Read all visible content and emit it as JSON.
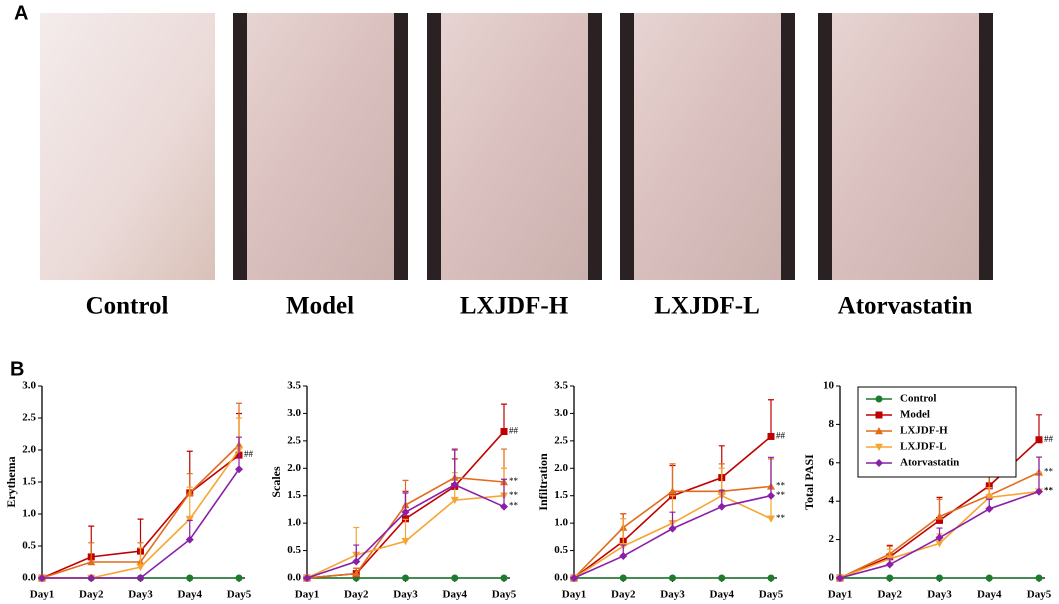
{
  "panels": {
    "a": "A",
    "b": "B"
  },
  "photos": [
    "Control",
    "Model",
    "LXJDF-H",
    "LXJDF-L",
    "Atorvastatin"
  ],
  "chart_data": [
    {
      "type": "line",
      "ylabel": "Erythema",
      "categories": [
        "Day1",
        "Day2",
        "Day3",
        "Day4",
        "Day5"
      ],
      "ylim": [
        0,
        3
      ],
      "yticks": [
        {
          "value": 0,
          "label": "0.0"
        },
        0.5,
        {
          "value": 1,
          "label": "1.0"
        },
        1.5,
        {
          "value": 2,
          "label": "2.0"
        },
        2.5,
        {
          "value": 3,
          "label": "3.0"
        }
      ],
      "series": [
        {
          "name": "Control",
          "color": "#1e7b2e",
          "marker": "circle",
          "values": [
            0,
            0,
            0,
            0,
            0
          ]
        },
        {
          "name": "Model",
          "color": "#c00000",
          "marker": "square",
          "values": [
            0,
            0.33,
            0.42,
            1.33,
            1.92
          ],
          "errors": [
            0,
            0.48,
            0.5,
            0.65,
            0.65
          ],
          "annotation": "##"
        },
        {
          "name": "LXJDF-H",
          "color": "#e06c1c",
          "marker": "triangle",
          "values": [
            0,
            0.25,
            0.25,
            1.33,
            2.08
          ],
          "errors": [
            0,
            0.3,
            0.3,
            0.3,
            0.65
          ]
        },
        {
          "name": "LXJDF-L",
          "color": "#f7a530",
          "marker": "triangle-down",
          "values": [
            0,
            0,
            0.17,
            0.92,
            2.0
          ],
          "errors": [
            0,
            0,
            0.3,
            0.5,
            0.5
          ]
        },
        {
          "name": "Atorvastatin",
          "color": "#8a1fa8",
          "marker": "diamond",
          "values": [
            0,
            0,
            0,
            0.6,
            1.7
          ],
          "errors": [
            0,
            0,
            0,
            0.3,
            0.5
          ]
        }
      ]
    },
    {
      "type": "line",
      "ylabel": "Scales",
      "categories": [
        "Day1",
        "Day2",
        "Day3",
        "Day4",
        "Day5"
      ],
      "ylim": [
        0,
        3.5
      ],
      "yticks": [
        {
          "value": 0,
          "label": "0.0"
        },
        0.5,
        {
          "value": 1,
          "label": "1.0"
        },
        1.5,
        {
          "value": 2,
          "label": "2.0"
        },
        2.5,
        {
          "value": 3,
          "label": "3.0"
        },
        3.5
      ],
      "series": [
        {
          "name": "Control",
          "color": "#1e7b2e",
          "marker": "circle",
          "values": [
            0,
            0,
            0,
            0,
            0
          ]
        },
        {
          "name": "Model",
          "color": "#c00000",
          "marker": "square",
          "values": [
            0,
            0.08,
            1.08,
            1.67,
            2.67
          ],
          "errors": [
            0,
            0.1,
            0.5,
            0.5,
            0.5
          ],
          "annotation": "##"
        },
        {
          "name": "LXJDF-H",
          "color": "#e06c1c",
          "marker": "triangle",
          "values": [
            0,
            0.08,
            1.33,
            1.83,
            1.75
          ],
          "errors": [
            0,
            0.1,
            0.45,
            0.5,
            0.6
          ],
          "annotation": "**"
        },
        {
          "name": "LXJDF-L",
          "color": "#f7a530",
          "marker": "triangle-down",
          "values": [
            0,
            0.42,
            0.67,
            1.42,
            1.5
          ],
          "errors": [
            0,
            0.5,
            0.4,
            0.5,
            0.5
          ],
          "annotation": "**"
        },
        {
          "name": "Atorvastatin",
          "color": "#8a1fa8",
          "marker": "diamond",
          "values": [
            0,
            0.3,
            1.2,
            1.7,
            1.3
          ],
          "errors": [
            0,
            0.3,
            0.35,
            0.65,
            0.5
          ],
          "annotation": "**"
        }
      ]
    },
    {
      "type": "line",
      "ylabel": "Infiltration",
      "categories": [
        "Day1",
        "Day2",
        "Day3",
        "Day4",
        "Day5"
      ],
      "ylim": [
        0,
        3.5
      ],
      "yticks": [
        {
          "value": 0,
          "label": "0.0"
        },
        0.5,
        {
          "value": 1,
          "label": "1.0"
        },
        1.5,
        {
          "value": 2,
          "label": "2.0"
        },
        2.5,
        {
          "value": 3,
          "label": "3.0"
        },
        3.5
      ],
      "series": [
        {
          "name": "Control",
          "color": "#1e7b2e",
          "marker": "circle",
          "values": [
            0,
            0,
            0,
            0,
            0
          ]
        },
        {
          "name": "Model",
          "color": "#c00000",
          "marker": "square",
          "values": [
            0,
            0.67,
            1.5,
            1.83,
            2.58
          ],
          "errors": [
            0,
            0.5,
            0.55,
            0.58,
            0.67
          ],
          "annotation": "##"
        },
        {
          "name": "LXJDF-H",
          "color": "#e06c1c",
          "marker": "triangle",
          "values": [
            0,
            0.92,
            1.58,
            1.58,
            1.67
          ],
          "errors": [
            0,
            0.25,
            0.5,
            0.5,
            0.5
          ],
          "annotation": "**"
        },
        {
          "name": "LXJDF-L",
          "color": "#f7a530",
          "marker": "triangle-down",
          "values": [
            0,
            0.58,
            1.0,
            1.5,
            1.08
          ],
          "errors": [
            0,
            0.5,
            0.5,
            0.5,
            1.1
          ],
          "annotation": "**"
        },
        {
          "name": "Atorvastatin",
          "color": "#8a1fa8",
          "marker": "diamond",
          "values": [
            0,
            0.4,
            0.9,
            1.3,
            1.5
          ],
          "errors": [
            0,
            0.2,
            0.3,
            0.3,
            0.7
          ],
          "annotation": "**"
        }
      ]
    },
    {
      "type": "line",
      "ylabel": "Total PASI",
      "categories": [
        "Day1",
        "Day2",
        "Day3",
        "Day4",
        "Day5"
      ],
      "ylim": [
        0,
        10
      ],
      "yticks": [
        0,
        2,
        4,
        6,
        8,
        10
      ],
      "legend": "upper left",
      "series": [
        {
          "name": "Control",
          "color": "#1e7b2e",
          "marker": "circle",
          "values": [
            0,
            0,
            0,
            0,
            0
          ]
        },
        {
          "name": "Model",
          "color": "#c00000",
          "marker": "square",
          "values": [
            0,
            1.1,
            3.0,
            4.8,
            7.2
          ],
          "errors": [
            0,
            0.6,
            1.2,
            1.2,
            1.3
          ],
          "annotation": "##"
        },
        {
          "name": "LXJDF-H",
          "color": "#e06c1c",
          "marker": "triangle",
          "values": [
            0,
            1.25,
            3.2,
            4.3,
            5.5
          ],
          "errors": [
            0,
            0.4,
            0.9,
            1.1,
            0.8
          ],
          "annotation": "**"
        },
        {
          "name": "LXJDF-L",
          "color": "#f7a530",
          "marker": "triangle-down",
          "values": [
            0,
            1.0,
            1.8,
            4.2,
            4.5
          ],
          "errors": [
            0,
            0.5,
            0.5,
            0.5,
            1.0
          ],
          "annotation": "**"
        },
        {
          "name": "Atorvastatin",
          "color": "#8a1fa8",
          "marker": "diamond",
          "values": [
            0,
            0.7,
            2.1,
            3.6,
            4.5
          ],
          "errors": [
            0,
            0.3,
            0.5,
            0.5,
            1.8
          ],
          "annotation": "**"
        }
      ]
    }
  ]
}
